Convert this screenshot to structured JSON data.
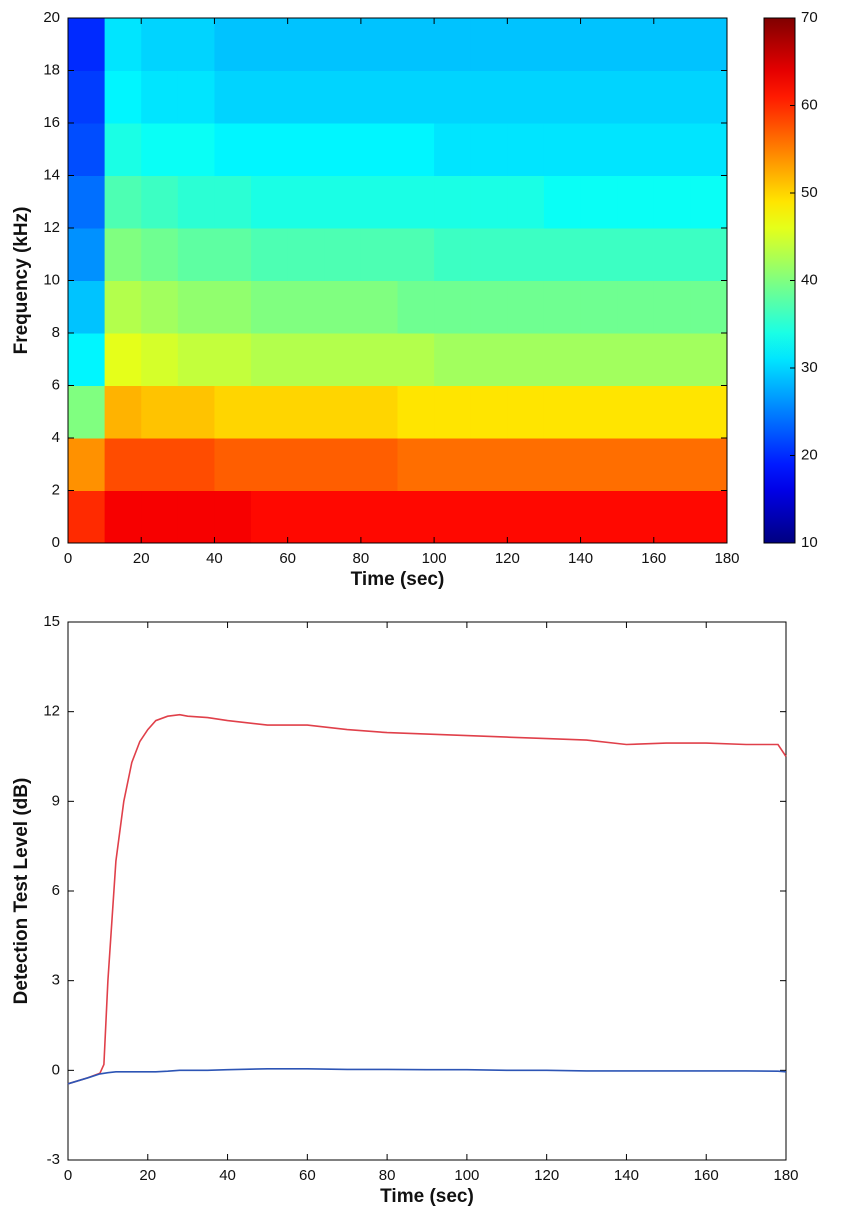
{
  "chart_data": [
    {
      "type": "heatmap",
      "xlabel": "Time (sec)",
      "ylabel": "Frequency (kHz)",
      "xbins": [
        0,
        10,
        20,
        30,
        40,
        50,
        60,
        70,
        80,
        90,
        100,
        110,
        120,
        130,
        140,
        150,
        160,
        170,
        180
      ],
      "ybins": [
        0,
        2,
        4,
        6,
        8,
        10,
        12,
        14,
        16,
        18,
        20
      ],
      "values": [
        [
          60,
          63,
          63,
          63,
          63,
          62,
          62,
          62,
          62,
          62,
          62,
          62,
          62,
          62,
          62,
          62,
          62,
          62
        ],
        [
          54,
          58,
          58,
          58,
          57,
          57,
          57,
          57,
          57,
          56,
          56,
          56,
          56,
          56,
          56,
          56,
          56,
          56
        ],
        [
          40,
          52,
          51,
          51,
          50,
          50,
          50,
          50,
          50,
          49,
          49,
          49,
          49,
          49,
          49,
          49,
          49,
          49
        ],
        [
          32,
          46,
          45,
          44,
          44,
          43,
          43,
          43,
          43,
          43,
          42,
          42,
          42,
          42,
          42,
          42,
          42,
          42
        ],
        [
          29,
          43,
          42,
          41,
          41,
          40,
          40,
          40,
          40,
          39,
          39,
          39,
          39,
          39,
          39,
          39,
          39,
          39
        ],
        [
          26,
          40,
          39,
          38,
          38,
          37,
          37,
          37,
          37,
          37,
          36,
          36,
          36,
          36,
          36,
          36,
          36,
          36
        ],
        [
          24,
          37,
          36,
          35,
          35,
          34,
          34,
          34,
          34,
          34,
          34,
          34,
          34,
          33,
          33,
          33,
          33,
          33
        ],
        [
          22,
          34,
          33,
          33,
          32,
          32,
          32,
          32,
          32,
          32,
          31,
          31,
          31,
          31,
          31,
          31,
          31,
          31
        ],
        [
          21,
          32,
          31,
          31,
          30,
          30,
          30,
          30,
          30,
          30,
          30,
          30,
          30,
          30,
          30,
          30,
          30,
          30
        ],
        [
          20,
          31,
          30,
          30,
          29,
          29,
          29,
          29,
          29,
          29,
          29,
          29,
          29,
          29,
          29,
          29,
          29,
          29
        ]
      ],
      "colormap": "jet",
      "xlim": [
        0,
        180
      ],
      "xticks": [
        0,
        20,
        40,
        60,
        80,
        100,
        120,
        140,
        160,
        180
      ],
      "ylim": [
        0,
        20
      ],
      "yticks": [
        0,
        2,
        4,
        6,
        8,
        10,
        12,
        14,
        16,
        18,
        20
      ],
      "zlim": [
        10,
        70
      ],
      "zticks": [
        10,
        20,
        30,
        40,
        50,
        60,
        70
      ]
    },
    {
      "type": "line",
      "xlabel": "Time (sec)",
      "ylabel": "Detection Test Level (dB)",
      "x": [
        0,
        5,
        8,
        9,
        10,
        12,
        14,
        16,
        18,
        20,
        22,
        25,
        28,
        30,
        35,
        40,
        50,
        60,
        70,
        80,
        90,
        100,
        110,
        120,
        130,
        140,
        150,
        160,
        170,
        178,
        180
      ],
      "series": [
        {
          "color": "#e0404a",
          "values": [
            -0.45,
            -0.25,
            -0.1,
            0.2,
            3,
            7,
            9,
            10.3,
            11,
            11.4,
            11.7,
            11.85,
            11.9,
            11.85,
            11.8,
            11.7,
            11.55,
            11.55,
            11.4,
            11.3,
            11.25,
            11.2,
            11.15,
            11.1,
            11.05,
            10.9,
            10.95,
            10.95,
            10.9,
            10.9,
            10.5
          ]
        },
        {
          "color": "#2d55b5",
          "values": [
            -0.45,
            -0.25,
            -0.12,
            -0.1,
            -0.08,
            -0.05,
            -0.05,
            -0.05,
            -0.05,
            -0.05,
            -0.05,
            -0.03,
            0,
            0,
            0,
            0.02,
            0.05,
            0.05,
            0.03,
            0.03,
            0.02,
            0.02,
            0,
            0,
            -0.02,
            -0.02,
            -0.02,
            -0.02,
            -0.02,
            -0.03,
            -0.05
          ]
        }
      ],
      "xlim": [
        0,
        180
      ],
      "xticks": [
        0,
        20,
        40,
        60,
        80,
        100,
        120,
        140,
        160,
        180
      ],
      "ylim": [
        -3,
        15
      ],
      "yticks": [
        -3,
        0,
        3,
        6,
        9,
        12,
        15
      ]
    }
  ]
}
